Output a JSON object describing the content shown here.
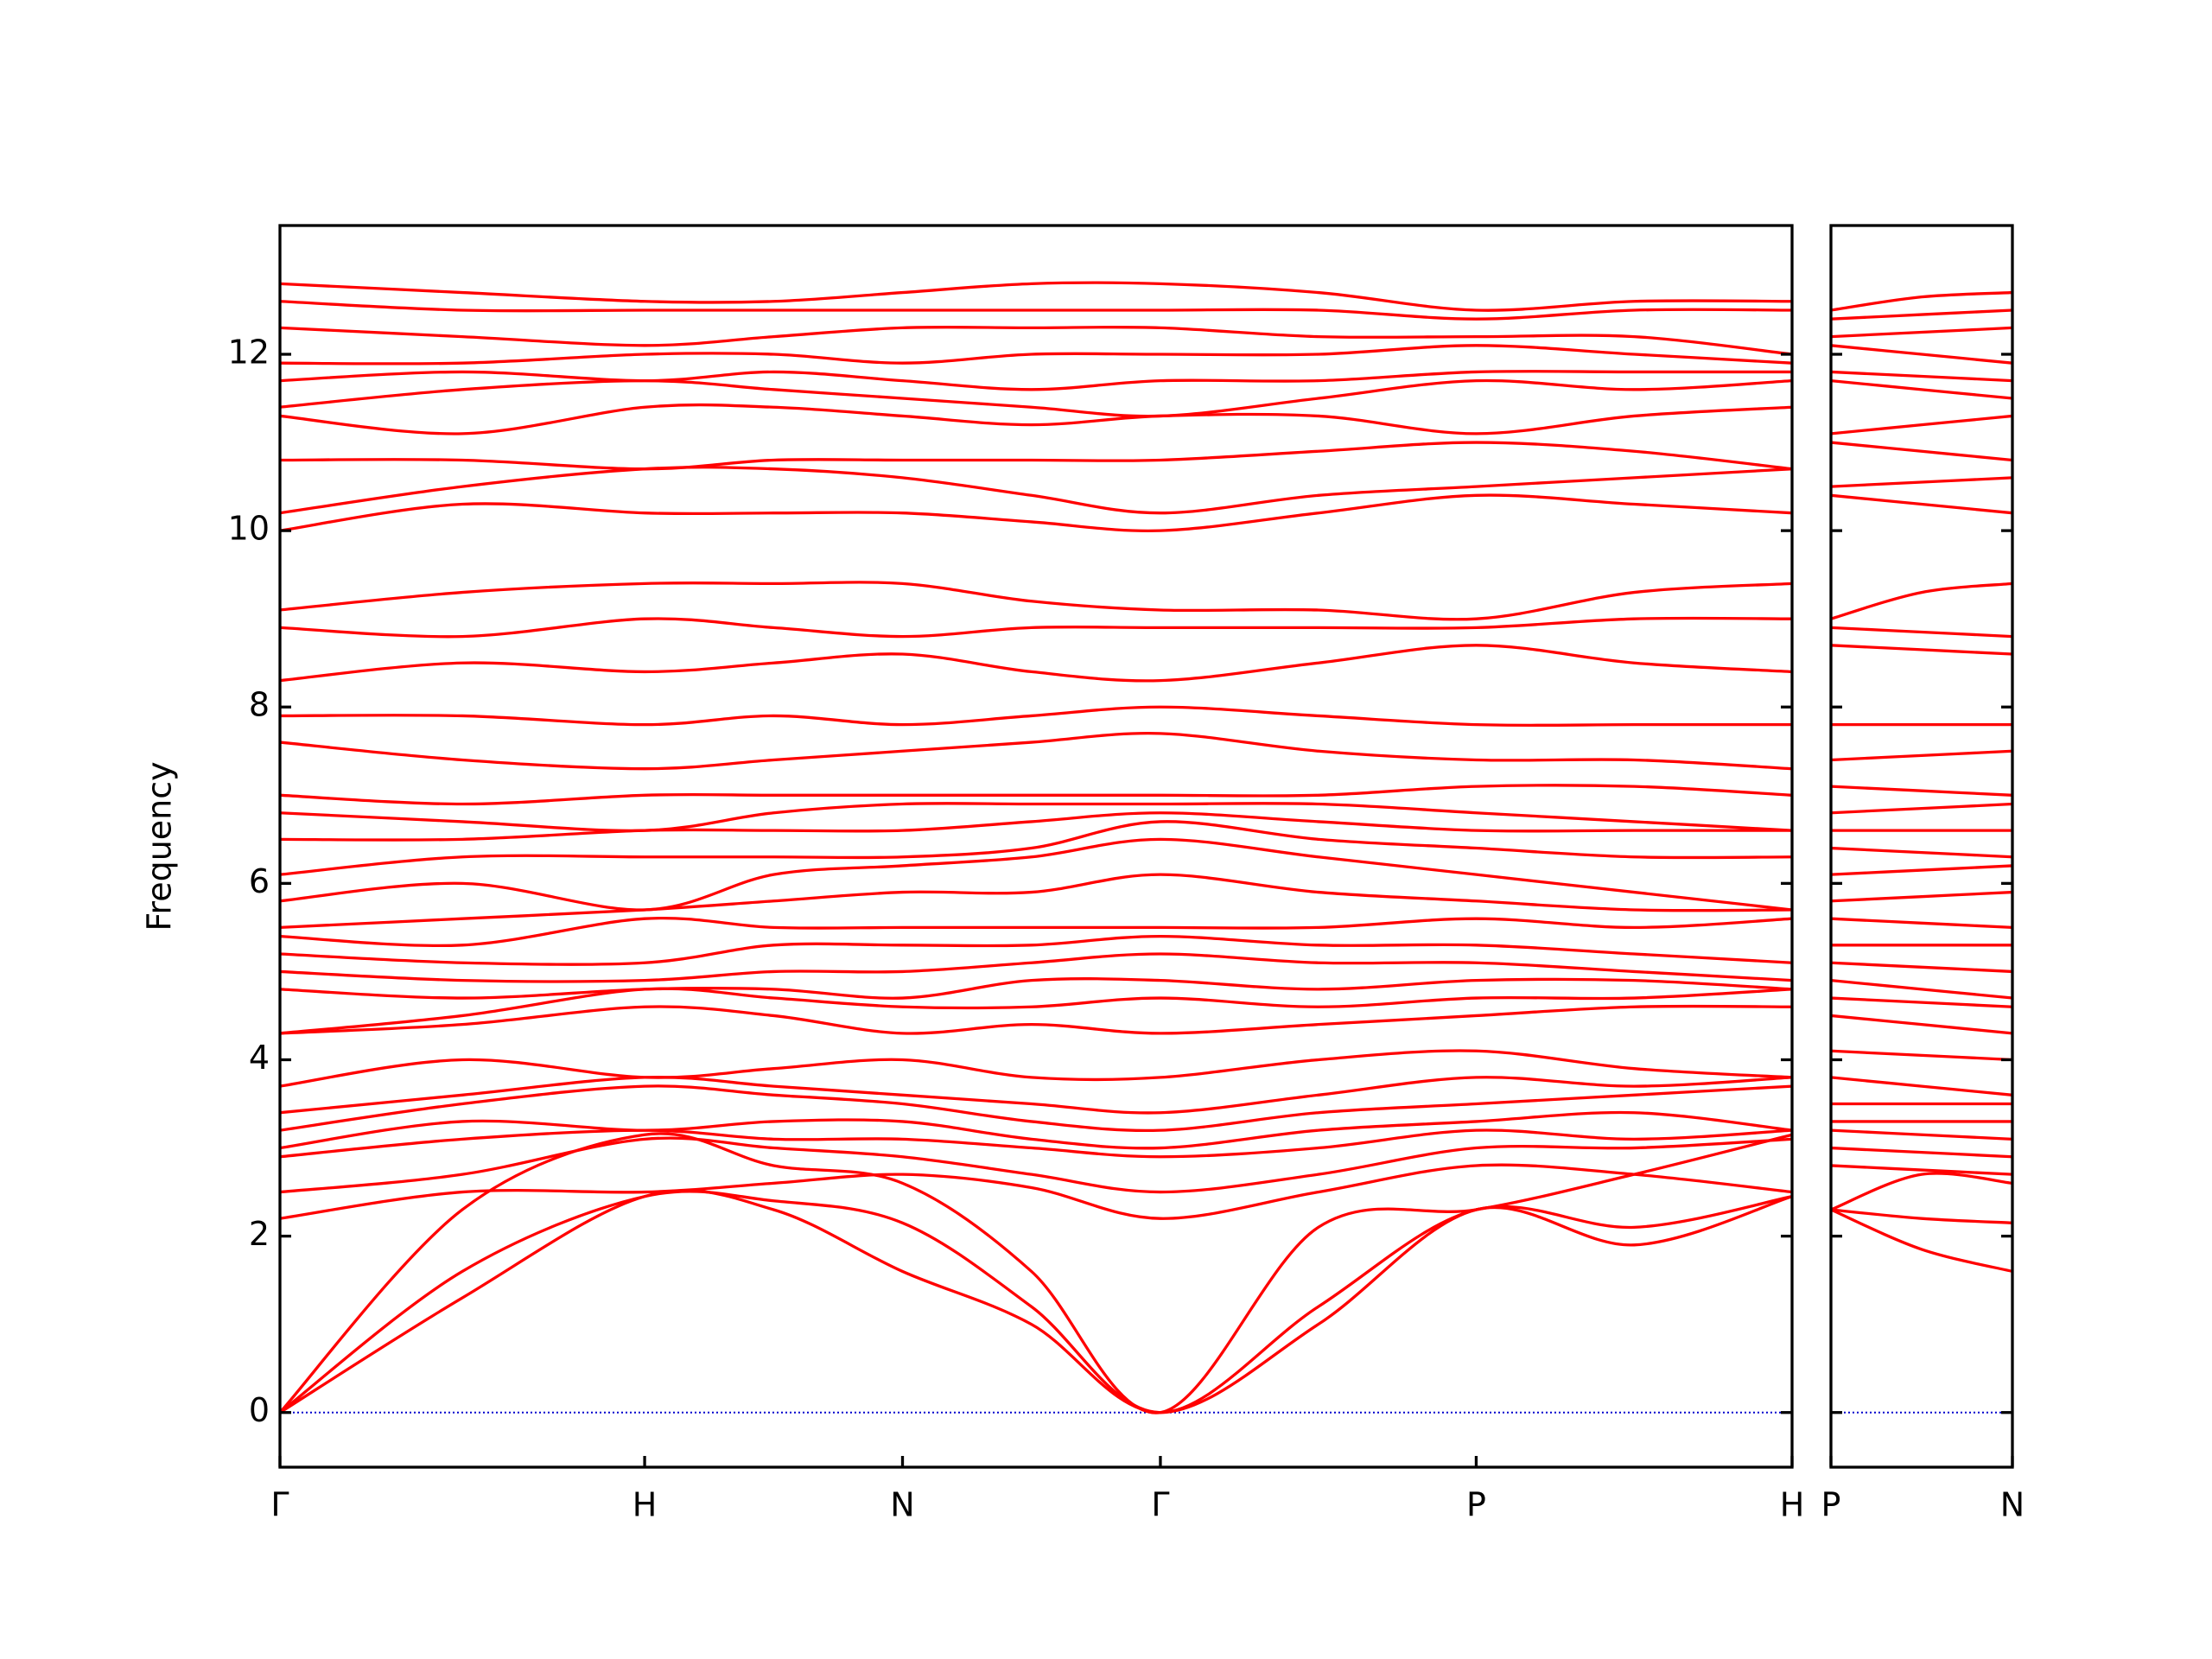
{
  "chart_data": [
    {
      "type": "line",
      "ylabel": "Frequency",
      "color": "#ff0000",
      "show_ytick_labels": true,
      "x": [
        0,
        0.5,
        1,
        1.3536,
        1.7071,
        2.0607,
        2.4142,
        2.8472,
        3.2802,
        3.7133,
        4.1463
      ],
      "xlim": [
        0,
        4.1463
      ],
      "xticks": [
        {
          "value": 0,
          "label": "Γ"
        },
        {
          "value": 1,
          "label": "H"
        },
        {
          "value": 1.7071,
          "label": "N"
        },
        {
          "value": 2.4142,
          "label": "Γ"
        },
        {
          "value": 3.2802,
          "label": "P"
        },
        {
          "value": 4.1463,
          "label": "H"
        }
      ],
      "ylim": [
        -0.62,
        13.46
      ],
      "yticks": [
        0,
        2,
        4,
        6,
        8,
        10,
        12
      ],
      "hlines": [
        {
          "value": 0,
          "color": "#0000cd"
        }
      ],
      "series": [
        {
          "values": [
            0,
            1.3,
            2.45,
            2.3,
            1.6,
            1.0,
            0,
            1.0,
            2.3,
            1.9,
            2.45
          ]
        },
        {
          "values": [
            0,
            1.6,
            2.45,
            2.4,
            2.15,
            1.2,
            0,
            1.2,
            2.3,
            2.1,
            2.45
          ]
        },
        {
          "values": [
            0,
            2.3,
            3.15,
            2.8,
            2.6,
            1.6,
            0,
            2.1,
            2.3,
            2.7,
            3.15
          ]
        },
        {
          "values": [
            2.2,
            2.5,
            2.5,
            2.6,
            2.7,
            2.55,
            2.2,
            2.5,
            2.8,
            2.7,
            2.5
          ]
        },
        {
          "values": [
            2.5,
            2.7,
            3.1,
            3.0,
            2.9,
            2.7,
            2.5,
            2.7,
            3.0,
            3.0,
            3.1
          ]
        },
        {
          "values": [
            2.9,
            3.1,
            3.2,
            3.1,
            3.1,
            3.0,
            2.9,
            3.0,
            3.2,
            3.1,
            3.2
          ]
        },
        {
          "values": [
            3.0,
            3.3,
            3.2,
            3.3,
            3.3,
            3.1,
            3.0,
            3.2,
            3.3,
            3.4,
            3.2
          ]
        },
        {
          "values": [
            3.2,
            3.5,
            3.7,
            3.6,
            3.5,
            3.3,
            3.2,
            3.4,
            3.5,
            3.6,
            3.7
          ]
        },
        {
          "values": [
            3.4,
            3.6,
            3.8,
            3.7,
            3.6,
            3.5,
            3.4,
            3.6,
            3.8,
            3.7,
            3.8
          ]
        },
        {
          "values": [
            3.7,
            4.0,
            3.8,
            3.9,
            4.0,
            3.8,
            3.8,
            4.0,
            4.1,
            3.9,
            3.8
          ]
        },
        {
          "values": [
            4.3,
            4.4,
            4.6,
            4.5,
            4.3,
            4.4,
            4.3,
            4.4,
            4.5,
            4.6,
            4.6
          ]
        },
        {
          "values": [
            4.3,
            4.5,
            4.8,
            4.7,
            4.6,
            4.6,
            4.7,
            4.6,
            4.7,
            4.7,
            4.8
          ]
        },
        {
          "values": [
            4.8,
            4.7,
            4.8,
            4.8,
            4.7,
            4.9,
            4.9,
            4.8,
            4.9,
            4.9,
            4.8
          ]
        },
        {
          "values": [
            5.0,
            4.9,
            4.9,
            5.0,
            5.0,
            5.1,
            5.2,
            5.1,
            5.1,
            5.0,
            4.9
          ]
        },
        {
          "values": [
            5.2,
            5.1,
            5.1,
            5.3,
            5.3,
            5.3,
            5.4,
            5.3,
            5.3,
            5.2,
            5.1
          ]
        },
        {
          "values": [
            5.4,
            5.3,
            5.6,
            5.5,
            5.5,
            5.5,
            5.5,
            5.5,
            5.6,
            5.5,
            5.6
          ]
        },
        {
          "values": [
            5.5,
            5.6,
            5.7,
            5.8,
            5.9,
            5.9,
            6.1,
            5.9,
            5.8,
            5.7,
            5.7
          ]
        },
        {
          "values": [
            5.8,
            6.0,
            5.7,
            6.1,
            6.2,
            6.3,
            6.5,
            6.3,
            6.1,
            5.9,
            5.7
          ]
        },
        {
          "values": [
            6.1,
            6.3,
            6.3,
            6.3,
            6.3,
            6.4,
            6.7,
            6.5,
            6.4,
            6.3,
            6.3
          ]
        },
        {
          "values": [
            6.5,
            6.5,
            6.6,
            6.6,
            6.6,
            6.7,
            6.8,
            6.7,
            6.6,
            6.6,
            6.6
          ]
        },
        {
          "values": [
            6.8,
            6.7,
            6.6,
            6.8,
            6.9,
            6.9,
            6.9,
            6.9,
            6.8,
            6.7,
            6.6
          ]
        },
        {
          "values": [
            7.0,
            6.9,
            7.0,
            7.0,
            7.0,
            7.0,
            7.0,
            7.0,
            7.1,
            7.1,
            7.0
          ]
        },
        {
          "values": [
            7.6,
            7.4,
            7.3,
            7.4,
            7.5,
            7.6,
            7.7,
            7.5,
            7.4,
            7.4,
            7.3
          ]
        },
        {
          "values": [
            7.9,
            7.9,
            7.8,
            7.9,
            7.8,
            7.9,
            8.0,
            7.9,
            7.8,
            7.8,
            7.8
          ]
        },
        {
          "values": [
            8.3,
            8.5,
            8.4,
            8.5,
            8.6,
            8.4,
            8.3,
            8.5,
            8.7,
            8.5,
            8.4
          ]
        },
        {
          "values": [
            8.9,
            8.8,
            9.0,
            8.9,
            8.8,
            8.9,
            8.9,
            8.9,
            8.9,
            9.0,
            9.0
          ]
        },
        {
          "values": [
            9.1,
            9.3,
            9.4,
            9.4,
            9.4,
            9.2,
            9.1,
            9.1,
            9.0,
            9.3,
            9.4
          ]
        },
        {
          "values": [
            10.0,
            10.3,
            10.2,
            10.2,
            10.2,
            10.1,
            10.0,
            10.2,
            10.4,
            10.3,
            10.2
          ]
        },
        {
          "values": [
            10.2,
            10.5,
            10.7,
            10.7,
            10.6,
            10.4,
            10.2,
            10.4,
            10.5,
            10.6,
            10.7
          ]
        },
        {
          "values": [
            10.8,
            10.8,
            10.7,
            10.8,
            10.8,
            10.8,
            10.8,
            10.9,
            11.0,
            10.9,
            10.7
          ]
        },
        {
          "values": [
            11.3,
            11.1,
            11.4,
            11.4,
            11.3,
            11.2,
            11.3,
            11.3,
            11.1,
            11.3,
            11.4
          ]
        },
        {
          "values": [
            11.4,
            11.6,
            11.7,
            11.6,
            11.5,
            11.4,
            11.3,
            11.5,
            11.7,
            11.6,
            11.7
          ]
        },
        {
          "values": [
            11.7,
            11.8,
            11.7,
            11.8,
            11.7,
            11.6,
            11.7,
            11.7,
            11.8,
            11.8,
            11.8
          ]
        },
        {
          "values": [
            11.9,
            11.9,
            12.0,
            12.0,
            11.9,
            12.0,
            12.0,
            12.0,
            12.1,
            12.0,
            11.9
          ]
        },
        {
          "values": [
            12.3,
            12.2,
            12.1,
            12.2,
            12.3,
            12.3,
            12.3,
            12.2,
            12.2,
            12.2,
            12.0
          ]
        },
        {
          "values": [
            12.6,
            12.5,
            12.5,
            12.5,
            12.5,
            12.5,
            12.5,
            12.5,
            12.4,
            12.5,
            12.5
          ]
        },
        {
          "values": [
            12.8,
            12.7,
            12.6,
            12.6,
            12.7,
            12.8,
            12.8,
            12.7,
            12.5,
            12.6,
            12.6
          ]
        }
      ]
    },
    {
      "type": "line",
      "color": "#ff0000",
      "show_ytick_labels": false,
      "x": [
        0,
        0.25,
        0.5
      ],
      "xlim": [
        0,
        0.5
      ],
      "xticks": [
        {
          "value": 0,
          "label": "P"
        },
        {
          "value": 0.5,
          "label": "N"
        }
      ],
      "ylim": [
        -0.62,
        13.46
      ],
      "yticks": [
        0,
        2,
        4,
        6,
        8,
        10,
        12
      ],
      "hlines": [
        {
          "value": 0,
          "color": "#0000cd"
        }
      ],
      "series": [
        {
          "values": [
            2.3,
            1.85,
            1.6
          ]
        },
        {
          "values": [
            2.3,
            2.2,
            2.15
          ]
        },
        {
          "values": [
            2.3,
            2.7,
            2.6
          ]
        },
        {
          "values": [
            2.8,
            2.75,
            2.7
          ]
        },
        {
          "values": [
            3.0,
            2.95,
            2.9
          ]
        },
        {
          "values": [
            3.2,
            3.15,
            3.1
          ]
        },
        {
          "values": [
            3.3,
            3.3,
            3.3
          ]
        },
        {
          "values": [
            3.5,
            3.5,
            3.5
          ]
        },
        {
          "values": [
            3.8,
            3.7,
            3.6
          ]
        },
        {
          "values": [
            4.1,
            4.05,
            4.0
          ]
        },
        {
          "values": [
            4.5,
            4.4,
            4.3
          ]
        },
        {
          "values": [
            4.7,
            4.65,
            4.6
          ]
        },
        {
          "values": [
            4.9,
            4.8,
            4.7
          ]
        },
        {
          "values": [
            5.1,
            5.05,
            5.0
          ]
        },
        {
          "values": [
            5.3,
            5.3,
            5.3
          ]
        },
        {
          "values": [
            5.6,
            5.55,
            5.5
          ]
        },
        {
          "values": [
            5.8,
            5.85,
            5.9
          ]
        },
        {
          "values": [
            6.1,
            6.15,
            6.2
          ]
        },
        {
          "values": [
            6.4,
            6.35,
            6.3
          ]
        },
        {
          "values": [
            6.6,
            6.6,
            6.6
          ]
        },
        {
          "values": [
            6.8,
            6.85,
            6.9
          ]
        },
        {
          "values": [
            7.1,
            7.05,
            7.0
          ]
        },
        {
          "values": [
            7.4,
            7.45,
            7.5
          ]
        },
        {
          "values": [
            7.8,
            7.8,
            7.8
          ]
        },
        {
          "values": [
            8.7,
            8.65,
            8.6
          ]
        },
        {
          "values": [
            8.9,
            8.85,
            8.8
          ]
        },
        {
          "values": [
            9.0,
            9.3,
            9.4
          ]
        },
        {
          "values": [
            10.4,
            10.3,
            10.2
          ]
        },
        {
          "values": [
            10.5,
            10.55,
            10.6
          ]
        },
        {
          "values": [
            11.0,
            10.9,
            10.8
          ]
        },
        {
          "values": [
            11.1,
            11.2,
            11.3
          ]
        },
        {
          "values": [
            11.7,
            11.6,
            11.5
          ]
        },
        {
          "values": [
            11.8,
            11.75,
            11.7
          ]
        },
        {
          "values": [
            12.1,
            12.0,
            11.9
          ]
        },
        {
          "values": [
            12.2,
            12.25,
            12.3
          ]
        },
        {
          "values": [
            12.4,
            12.45,
            12.5
          ]
        },
        {
          "values": [
            12.5,
            12.65,
            12.7
          ]
        }
      ]
    }
  ]
}
